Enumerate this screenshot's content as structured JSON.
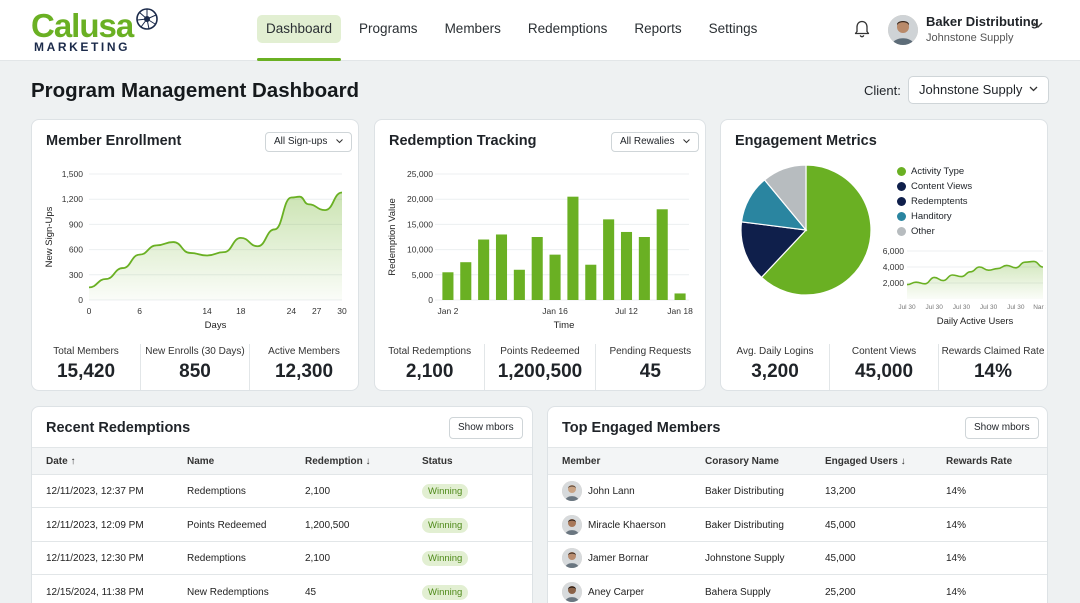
{
  "header": {
    "logo_word": "Calusa",
    "logo_sub": "MARKETING",
    "nav": [
      "Dashboard",
      "Programs",
      "Members",
      "Redemptions",
      "Reports",
      "Settings"
    ],
    "active_nav": "Dashboard",
    "user_name": "Baker Distributing",
    "user_org": "Johnstone Supply"
  },
  "page": {
    "title": "Program Management Dashboard",
    "client_label": "Client:",
    "client_value": "Johnstone Supply"
  },
  "enrollment": {
    "title": "Member Enrollment",
    "filter": "All Sign-ups",
    "stats": [
      {
        "label": "Total Members",
        "value": "15,420"
      },
      {
        "label": "New Enrolls (30 Days)",
        "value": "850"
      },
      {
        "label": "Active Members",
        "value": "12,300"
      }
    ]
  },
  "redemption": {
    "title": "Redemption Tracking",
    "filter": "All Rewalies",
    "stats": [
      {
        "label": "Total Redemptions",
        "value": "2,100"
      },
      {
        "label": "Points Redeemed",
        "value": "1,200,500"
      },
      {
        "label": "Pending Requests",
        "value": "45"
      }
    ]
  },
  "engagement": {
    "title": "Engagement Metrics",
    "legend": [
      "Activity Type",
      "Content Views",
      "Redemptents",
      "Handitory",
      "Other"
    ],
    "stats": [
      {
        "label": "Avg. Daily Logins",
        "value": "3,200"
      },
      {
        "label": "Content Views",
        "value": "45,000"
      },
      {
        "label": "Rewards Claimed Rate",
        "value": "14%"
      }
    ]
  },
  "recent": {
    "title": "Recent Redemptions",
    "button": "Show mbors",
    "columns": [
      "Date ↑",
      "Name",
      "Redemption ↓",
      "Status"
    ],
    "rows": [
      [
        "12/11/2023, 12:37 PM",
        "Redemptions",
        "2,100",
        "Winning"
      ],
      [
        "12/11/2023, 12:09 PM",
        "Points Redeemed",
        "1,200,500",
        "Winning"
      ],
      [
        "12/11/2023, 12:30 PM",
        "Redemptions",
        "2,100",
        "Winning"
      ],
      [
        "12/15/2024, 11:38 PM",
        "New Redemptions",
        "45",
        "Winning"
      ]
    ]
  },
  "top": {
    "title": "Top Engaged Members",
    "button": "Show mbors",
    "columns": [
      "Member",
      "Corasory Name",
      "Engaged Users ↓",
      "Rewards Rate"
    ],
    "rows": [
      [
        "John Lann",
        "Baker Distributing",
        "13,200",
        "14%"
      ],
      [
        "Miracle Khaerson",
        "Baker Distributing",
        "45,000",
        "14%"
      ],
      [
        "Jamer Bornar",
        "Johnstone Supply",
        "45,000",
        "14%"
      ],
      [
        "Aney Carper",
        "Bahera Supply",
        "25,200",
        "14%"
      ]
    ]
  },
  "colors": {
    "green": "#6ab023",
    "navy": "#0f1f4b",
    "teal": "#2a85a0",
    "gray": "#b7bcbf"
  },
  "chart_data": [
    {
      "type": "area",
      "title": "Member Enrollment",
      "xlabel": "Days",
      "ylabel": "New Sign-Ups",
      "x": [
        0,
        2,
        4,
        6,
        8,
        10,
        12,
        14,
        16,
        18,
        20,
        22,
        24,
        25,
        26,
        28,
        30
      ],
      "y": [
        150,
        250,
        380,
        540,
        650,
        690,
        560,
        530,
        570,
        740,
        640,
        840,
        1220,
        1230,
        1140,
        1070,
        1280
      ],
      "xticks": [
        0,
        6,
        14,
        18,
        24,
        27,
        30
      ],
      "yticks": [
        "0",
        "300",
        "600",
        "900",
        "1,200",
        "1,500"
      ],
      "ylim": [
        0,
        1500
      ],
      "xlim": [
        0,
        30
      ]
    },
    {
      "type": "bar",
      "title": "Redemption Tracking",
      "xlabel": "Time",
      "ylabel": "Redemption Value",
      "values": [
        5500,
        7500,
        12000,
        13000,
        6000,
        12500,
        9000,
        20500,
        7000,
        16000,
        13500,
        12500,
        18000,
        1300
      ],
      "xticks": [
        "Jan 2",
        "Jan 16",
        "Jul 12",
        "Jan 18"
      ],
      "yticks": [
        "0",
        "5,000",
        "10,000",
        "15,000",
        "20,000",
        "25,000"
      ],
      "ylim": [
        0,
        25000
      ]
    },
    {
      "type": "pie",
      "title": "Engagement Metrics",
      "categories": [
        "Activity Type",
        "Content Views",
        "Redemptents",
        "Handitory",
        "Other"
      ],
      "values": [
        62,
        0,
        15,
        12,
        11
      ]
    },
    {
      "type": "area",
      "xlabel": "Daily Active Users",
      "x": [
        0,
        1,
        2,
        3,
        4,
        5,
        6,
        7,
        8,
        9,
        10,
        11,
        12,
        13,
        14,
        15
      ],
      "y": [
        1800,
        2100,
        1900,
        2700,
        2300,
        3000,
        2800,
        3400,
        4000,
        3600,
        3800,
        4200,
        3900,
        4600,
        4700,
        4000
      ],
      "yticks": [
        "2,000",
        "4,000",
        "6,000"
      ],
      "xticks": [
        "Jul 30",
        "Jul 30",
        "Jul 30",
        "Jul 30",
        "Jul 30",
        "Nar 30"
      ],
      "ylim": [
        0,
        6000
      ]
    }
  ]
}
